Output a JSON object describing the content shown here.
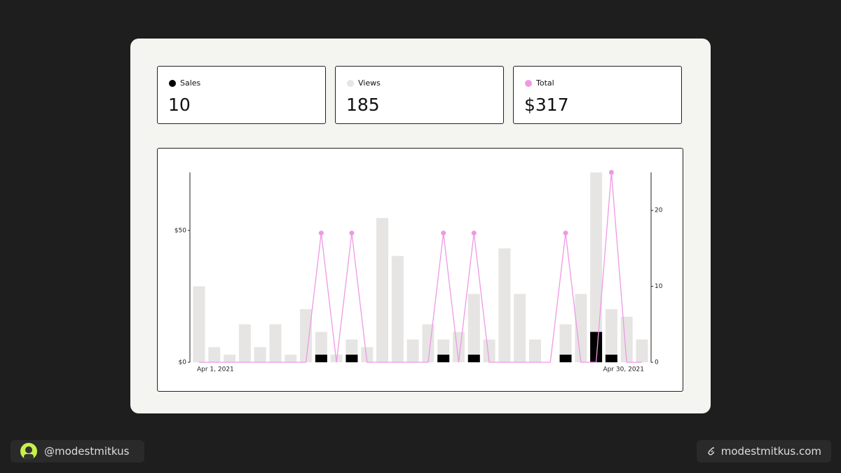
{
  "summary": [
    {
      "value": "10"
    },
    {
      "value": "185"
    },
    {
      "value": "$317"
    }
  ],
  "chart_data": {
    "type": "bar",
    "categories": [
      "Apr 1, 2021",
      null,
      null,
      null,
      null,
      null,
      null,
      null,
      null,
      null,
      null,
      null,
      null,
      null,
      null,
      null,
      null,
      null,
      null,
      null,
      null,
      null,
      null,
      null,
      null,
      null,
      null,
      null,
      null,
      "Apr 30, 2021"
    ],
    "series": [
      {
        "name": "Views",
        "type": "bar",
        "axis": "y2",
        "color": "#e6e5e3",
        "values": [
          10,
          2,
          1,
          5,
          2,
          5,
          1,
          7,
          4,
          1,
          3,
          2,
          19,
          14,
          3,
          5,
          3,
          4,
          9,
          3,
          15,
          9,
          3,
          0,
          5,
          9,
          25,
          7,
          6,
          3
        ]
      },
      {
        "name": "Sales",
        "type": "bar",
        "axis": "y2",
        "color": "#000000",
        "values": [
          0,
          0,
          0,
          0,
          0,
          0,
          0,
          0,
          1,
          0,
          1,
          0,
          0,
          0,
          0,
          0,
          1,
          0,
          1,
          0,
          0,
          0,
          0,
          0,
          1,
          0,
          4,
          1,
          0,
          0
        ]
      },
      {
        "name": "Total",
        "type": "line",
        "color": "#ee99e4",
        "values": [
          0,
          0,
          0,
          0,
          0,
          0,
          0,
          0,
          49,
          0,
          49,
          0,
          0,
          0,
          0,
          0,
          49,
          0,
          49,
          0,
          0,
          0,
          0,
          0,
          49,
          0,
          0,
          72,
          0,
          0
        ]
      }
    ],
    "ylim": [
      0,
      72
    ],
    "yticks": [
      {
        "value": 0,
        "label": "$0"
      },
      {
        "value": 50,
        "label": "$50"
      }
    ],
    "y2lim": [
      0,
      25
    ],
    "y2ticks": [
      0,
      10,
      20
    ]
  },
  "footer": {
    "handle": "@modestmitkus",
    "site": "modestmitkus.com"
  }
}
